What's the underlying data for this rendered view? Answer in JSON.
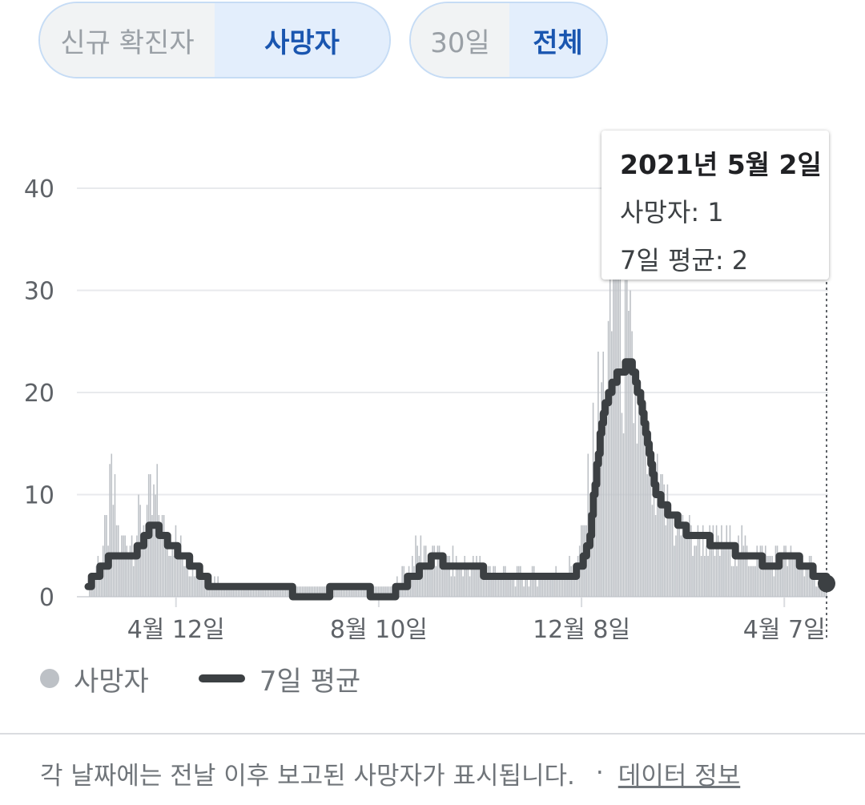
{
  "toggles": {
    "metric": {
      "options": [
        "신규 확진자",
        "사망자"
      ],
      "selected": "사망자"
    },
    "range": {
      "options": [
        "30일",
        "전체"
      ],
      "selected": "전체"
    }
  },
  "tooltip": {
    "date": "2021년 5월 2일",
    "deaths_label": "사망자: 1",
    "avg_label": "7일 평균: 2"
  },
  "legend": {
    "daily": "사망자",
    "average": "7일 평균"
  },
  "footer": {
    "note": "각 날짜에는 전날 이후 보고된 사망자가 표시됩니다.",
    "separator": "·",
    "link": "데이터 정보"
  },
  "colors": {
    "bar": "#bdc1c6",
    "line": "#3c4043",
    "selected_text": "#1a56b0",
    "grid": "#e8eaed"
  },
  "chart_data": {
    "type": "bar",
    "x_start": "2020-02-20",
    "x_end": "2021-05-02",
    "y_ticks": [
      0,
      10,
      20,
      30,
      40
    ],
    "ylim": [
      0,
      40
    ],
    "x_ticks": [
      "4월 12일",
      "8월 10일",
      "12월 8일",
      "4월 7일"
    ],
    "x_tick_dates": [
      "2020-04-12",
      "2020-08-10",
      "2020-12-08",
      "2021-04-07"
    ],
    "series": [
      {
        "name": "사망자",
        "type": "bar"
      },
      {
        "name": "7일 평균",
        "type": "line"
      }
    ],
    "daily_keypoints": [
      [
        "2020-02-20",
        0
      ],
      [
        "2020-02-23",
        2
      ],
      [
        "2020-02-28",
        4
      ],
      [
        "2020-03-02",
        6
      ],
      [
        "2020-03-05",
        11
      ],
      [
        "2020-03-10",
        5
      ],
      [
        "2020-03-18",
        6
      ],
      [
        "2020-03-25",
        8
      ],
      [
        "2020-04-01",
        9
      ],
      [
        "2020-04-06",
        6
      ],
      [
        "2020-04-14",
        5
      ],
      [
        "2020-04-22",
        3
      ],
      [
        "2020-05-01",
        2
      ],
      [
        "2020-05-10",
        1
      ],
      [
        "2020-06-10",
        1
      ],
      [
        "2020-07-10",
        1
      ],
      [
        "2020-08-20",
        1
      ],
      [
        "2020-08-28",
        3
      ],
      [
        "2020-09-03",
        5
      ],
      [
        "2020-09-12",
        4
      ],
      [
        "2020-09-25",
        3
      ],
      [
        "2020-10-10",
        3
      ],
      [
        "2020-10-25",
        2
      ],
      [
        "2020-11-20",
        2
      ],
      [
        "2020-12-05",
        3
      ],
      [
        "2020-12-10",
        7
      ],
      [
        "2020-12-15",
        14
      ],
      [
        "2020-12-20",
        20
      ],
      [
        "2020-12-25",
        23
      ],
      [
        "2020-12-29",
        40
      ],
      [
        "2021-01-02",
        24
      ],
      [
        "2021-01-08",
        20
      ],
      [
        "2021-01-14",
        15
      ],
      [
        "2021-01-20",
        10
      ],
      [
        "2021-01-30",
        8
      ],
      [
        "2021-02-10",
        6
      ],
      [
        "2021-02-25",
        5
      ],
      [
        "2021-03-10",
        5
      ],
      [
        "2021-03-25",
        4
      ],
      [
        "2021-04-07",
        4
      ],
      [
        "2021-04-20",
        3
      ],
      [
        "2021-05-02",
        1
      ]
    ],
    "avg_keypoints": [
      [
        "2020-02-20",
        1
      ],
      [
        "2020-02-23",
        2
      ],
      [
        "2020-03-01",
        3
      ],
      [
        "2020-03-05",
        4
      ],
      [
        "2020-03-10",
        4
      ],
      [
        "2020-03-18",
        4
      ],
      [
        "2020-03-25",
        6
      ],
      [
        "2020-03-29",
        7
      ],
      [
        "2020-04-04",
        6
      ],
      [
        "2020-04-08",
        5
      ],
      [
        "2020-04-16",
        4
      ],
      [
        "2020-04-22",
        3
      ],
      [
        "2020-04-28",
        2
      ],
      [
        "2020-05-03",
        1
      ],
      [
        "2020-06-10",
        1
      ],
      [
        "2020-06-28",
        0
      ],
      [
        "2020-07-25",
        1
      ],
      [
        "2020-08-15",
        0
      ],
      [
        "2020-08-24",
        1
      ],
      [
        "2020-08-30",
        2
      ],
      [
        "2020-09-07",
        3
      ],
      [
        "2020-09-12",
        4
      ],
      [
        "2020-09-20",
        3
      ],
      [
        "2020-10-05",
        3
      ],
      [
        "2020-10-15",
        2
      ],
      [
        "2020-11-15",
        2
      ],
      [
        "2020-12-01",
        2
      ],
      [
        "2020-12-08",
        3
      ],
      [
        "2020-12-13",
        6
      ],
      [
        "2020-12-17",
        13
      ],
      [
        "2020-12-21",
        18
      ],
      [
        "2020-12-26",
        21
      ],
      [
        "2020-12-31",
        22
      ],
      [
        "2021-01-05",
        23
      ],
      [
        "2021-01-09",
        21
      ],
      [
        "2021-01-13",
        18
      ],
      [
        "2021-01-17",
        14
      ],
      [
        "2021-01-21",
        10
      ],
      [
        "2021-01-25",
        9
      ],
      [
        "2021-01-30",
        8
      ],
      [
        "2021-02-05",
        7
      ],
      [
        "2021-02-10",
        6
      ],
      [
        "2021-02-18",
        6
      ],
      [
        "2021-02-25",
        5
      ],
      [
        "2021-03-05",
        5
      ],
      [
        "2021-03-12",
        4
      ],
      [
        "2021-03-20",
        4
      ],
      [
        "2021-03-28",
        3
      ],
      [
        "2021-04-10",
        4
      ],
      [
        "2021-04-20",
        3
      ],
      [
        "2021-04-26",
        2
      ],
      [
        "2021-05-02",
        2
      ]
    ],
    "highlight": {
      "date": "2021-05-02",
      "deaths": 1,
      "avg": 2
    }
  }
}
